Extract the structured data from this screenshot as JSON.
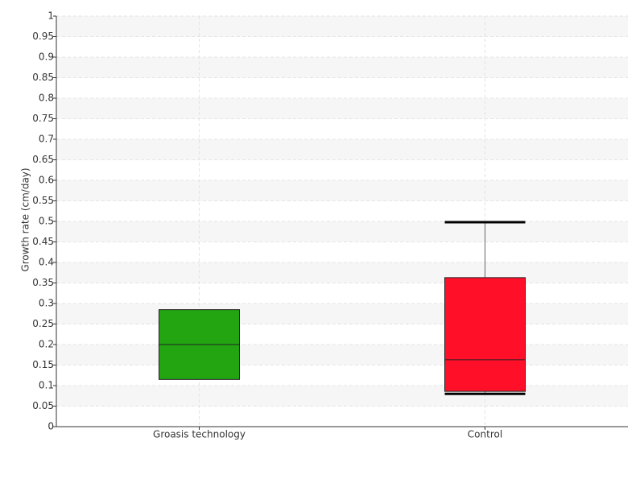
{
  "chart_data": {
    "type": "box",
    "y_label": "Growth rate (cm/day)",
    "categories": [
      "Groasis technology",
      "Control"
    ],
    "boxes": [
      {
        "q1": 0.115,
        "median": 0.2,
        "q3": 0.285,
        "color": "#22a511"
      },
      {
        "q1": 0.086,
        "median": 0.163,
        "q3": 0.363,
        "whislo": 0.08,
        "whishi": 0.498,
        "color": "#ff0f28"
      }
    ],
    "ylim": [
      0,
      1
    ],
    "yticks": [
      0,
      0.05,
      0.1,
      0.15,
      0.2,
      0.25,
      0.3,
      0.35,
      0.4,
      0.45,
      0.5,
      0.55,
      0.6,
      0.65,
      0.7,
      0.75,
      0.8,
      0.85,
      0.9,
      0.95,
      1
    ],
    "grid": true
  }
}
